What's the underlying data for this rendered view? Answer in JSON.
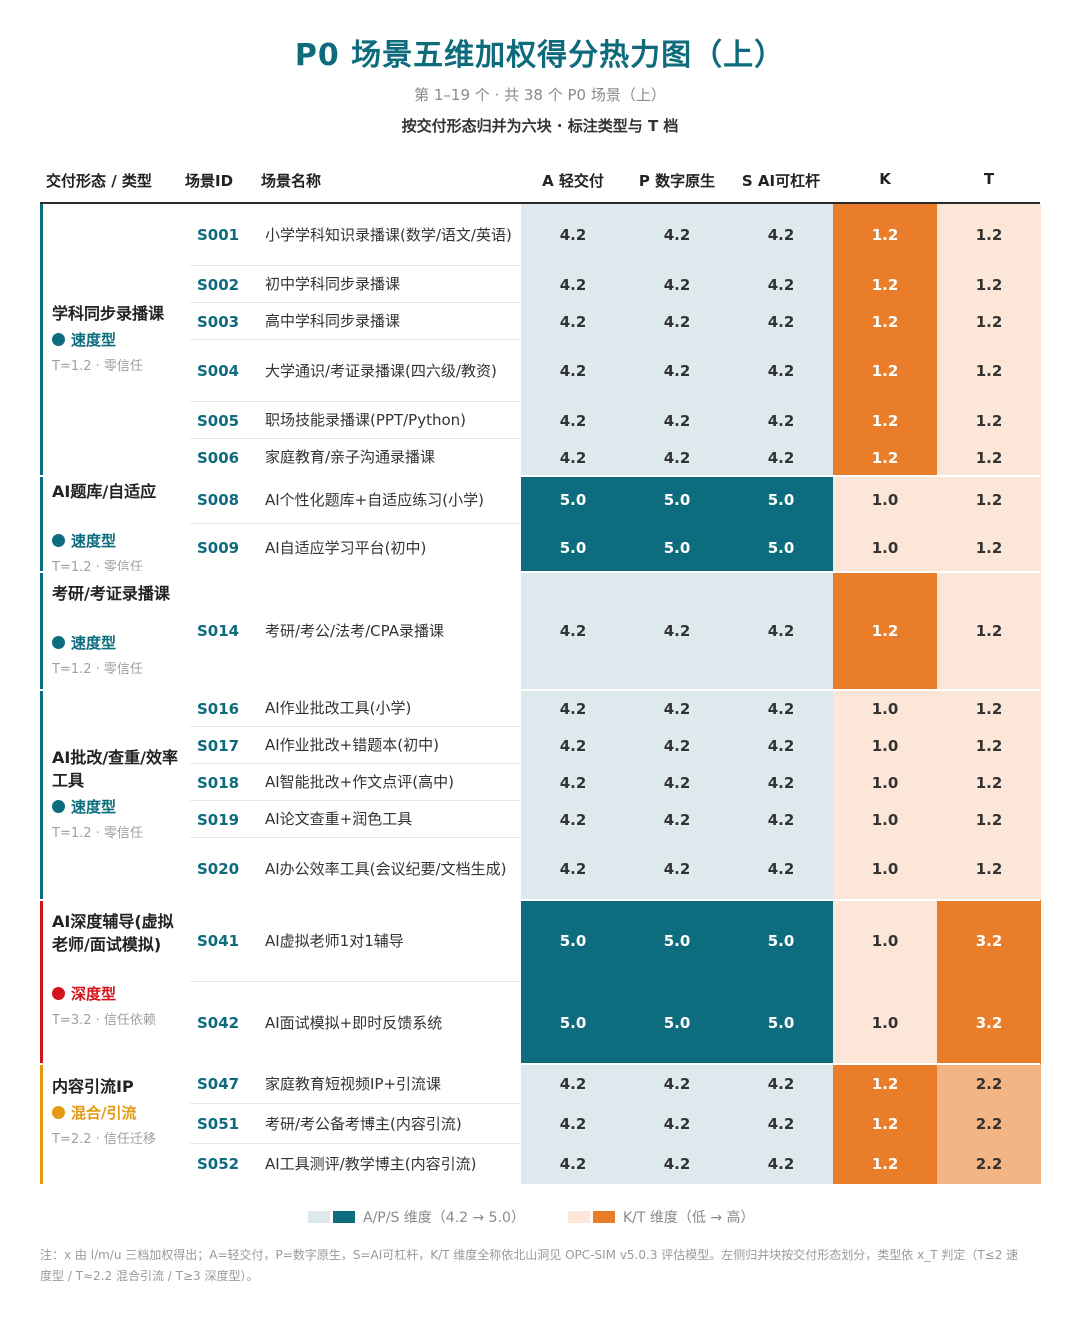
{
  "title": "P0 场景五维加权得分热力图（上）",
  "subtitle": "第 1–19 个 · 共 38 个 P0 场景（上）",
  "subtitle2": "按交付形态归并为六块 · 标注类型与 T 档",
  "headers": {
    "group": "交付形态 / 类型",
    "id": "场景ID",
    "name": "场景名称",
    "a": "A 轻交付",
    "p": "P 数字原生",
    "s": "S AI可杠杆",
    "k": "K",
    "t": "T"
  },
  "legend": {
    "aps": "A/P/S 维度（4.2 → 5.0）",
    "kt": "K/T 维度（低 → 高）"
  },
  "note": "注：x 由 l/m/u 三档加权得出；A=轻交付，P=数字原生，S=AI可杠杆，K/T 维度全称依北山洞见 OPC-SIM v5.0.3 评估模型。左侧归并块按交付形态划分，类型依 x_T 判定（T≤2 速度型 / T≈2.2 混合引流 / T≥3 深度型）。",
  "colors": {
    "teal": "#0d6d7e",
    "teal_light": "#dde9ec",
    "orange": "#ea7d2a",
    "orange_mid": "#f4b585",
    "peach": "#fbe6d8",
    "speed": "#0d6d7e",
    "deep": "#d0141a",
    "mixed": "#e39a12"
  },
  "groups": [
    {
      "name": "学科同步录播课",
      "type": "速度型",
      "type_color": "#0d6d7e",
      "tier": "T=1.2 · 零信任",
      "rows": 6
    },
    {
      "name": "AI题库/自适应",
      "type": "速度型",
      "type_color": "#0d6d7e",
      "tier": "T=1.2 · 零信任",
      "rows": 2
    },
    {
      "name": "考研/考证录播课",
      "type": "速度型",
      "type_color": "#0d6d7e",
      "tier": "T=1.2 · 零信任",
      "rows": 1
    },
    {
      "name": "AI批改/查重/效率工具",
      "type": "速度型",
      "type_color": "#0d6d7e",
      "tier": "T=1.2 · 零信任",
      "rows": 5
    },
    {
      "name": "AI深度辅导(虚拟老师/面试模拟)",
      "type": "深度型",
      "type_color": "#d0141a",
      "tier": "T=3.2 · 信任依赖",
      "rows": 2
    },
    {
      "name": "内容引流IP",
      "type": "混合/引流",
      "type_color": "#e39a12",
      "tier": "T=2.2 · 信任迁移",
      "rows": 3
    }
  ],
  "chart_data": {
    "type": "heatmap",
    "title": "P0 场景五维加权得分热力图（上）",
    "columns": [
      "A 轻交付",
      "P 数字原生",
      "S AI可杠杆",
      "K",
      "T"
    ],
    "rows": [
      {
        "id": "S001",
        "name": "小学学科知识录播课(数学/语文/英语)",
        "values": [
          4.2,
          4.2,
          4.2,
          1.2,
          1.2
        ]
      },
      {
        "id": "S002",
        "name": "初中学科同步录播课",
        "values": [
          4.2,
          4.2,
          4.2,
          1.2,
          1.2
        ]
      },
      {
        "id": "S003",
        "name": "高中学科同步录播课",
        "values": [
          4.2,
          4.2,
          4.2,
          1.2,
          1.2
        ]
      },
      {
        "id": "S004",
        "name": "大学通识/考证录播课(四六级/教资)",
        "values": [
          4.2,
          4.2,
          4.2,
          1.2,
          1.2
        ]
      },
      {
        "id": "S005",
        "name": "职场技能录播课(PPT/Python)",
        "values": [
          4.2,
          4.2,
          4.2,
          1.2,
          1.2
        ]
      },
      {
        "id": "S006",
        "name": "家庭教育/亲子沟通录播课",
        "values": [
          4.2,
          4.2,
          4.2,
          1.2,
          1.2
        ]
      },
      {
        "id": "S008",
        "name": "AI个性化题库+自适应练习(小学)",
        "values": [
          5.0,
          5.0,
          5.0,
          1.0,
          1.2
        ]
      },
      {
        "id": "S009",
        "name": "AI自适应学习平台(初中)",
        "values": [
          5.0,
          5.0,
          5.0,
          1.0,
          1.2
        ]
      },
      {
        "id": "S014",
        "name": "考研/考公/法考/CPA录播课",
        "values": [
          4.2,
          4.2,
          4.2,
          1.2,
          1.2
        ]
      },
      {
        "id": "S016",
        "name": "AI作业批改工具(小学)",
        "values": [
          4.2,
          4.2,
          4.2,
          1.0,
          1.2
        ]
      },
      {
        "id": "S017",
        "name": "AI作业批改+错题本(初中)",
        "values": [
          4.2,
          4.2,
          4.2,
          1.0,
          1.2
        ]
      },
      {
        "id": "S018",
        "name": "AI智能批改+作文点评(高中)",
        "values": [
          4.2,
          4.2,
          4.2,
          1.0,
          1.2
        ]
      },
      {
        "id": "S019",
        "name": "AI论文查重+润色工具",
        "values": [
          4.2,
          4.2,
          4.2,
          1.0,
          1.2
        ]
      },
      {
        "id": "S020",
        "name": "AI办公效率工具(会议纪要/文档生成)",
        "values": [
          4.2,
          4.2,
          4.2,
          1.0,
          1.2
        ]
      },
      {
        "id": "S041",
        "name": "AI虚拟老师1对1辅导",
        "values": [
          5.0,
          5.0,
          5.0,
          1.0,
          3.2
        ]
      },
      {
        "id": "S042",
        "name": "AI面试模拟+即时反馈系统",
        "values": [
          5.0,
          5.0,
          5.0,
          1.0,
          3.2
        ]
      },
      {
        "id": "S047",
        "name": "家庭教育短视频IP+引流课",
        "values": [
          4.2,
          4.2,
          4.2,
          1.2,
          2.2
        ]
      },
      {
        "id": "S051",
        "name": "考研/考公备考博主(内容引流)",
        "values": [
          4.2,
          4.2,
          4.2,
          1.2,
          2.2
        ]
      },
      {
        "id": "S052",
        "name": "AI工具测评/教学博主(内容引流)",
        "values": [
          4.2,
          4.2,
          4.2,
          1.2,
          2.2
        ]
      }
    ]
  }
}
